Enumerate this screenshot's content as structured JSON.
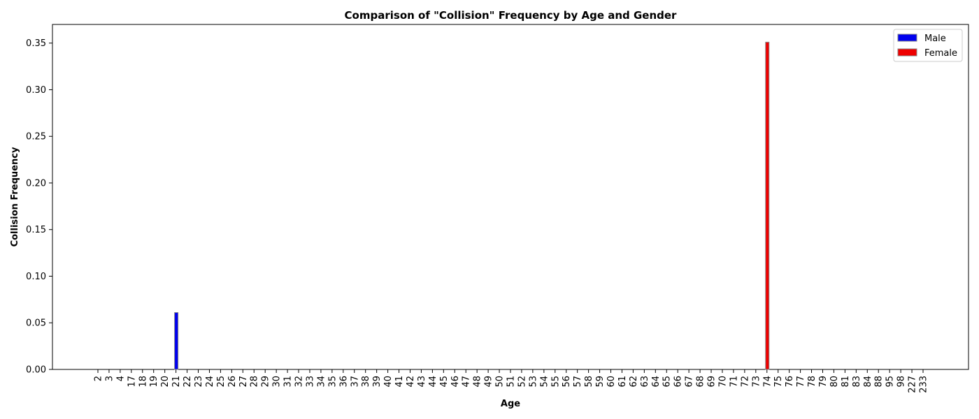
{
  "chart_data": {
    "type": "bar",
    "title": "Comparison of \"Collision\" Frequency by Age and Gender",
    "xlabel": "Age",
    "ylabel": "Collision Frequency",
    "categories": [
      "2",
      "3",
      "4",
      "17",
      "18",
      "19",
      "20",
      "21",
      "22",
      "23",
      "24",
      "25",
      "26",
      "27",
      "28",
      "29",
      "30",
      "31",
      "32",
      "33",
      "34",
      "35",
      "36",
      "37",
      "38",
      "39",
      "40",
      "41",
      "42",
      "43",
      "44",
      "45",
      "46",
      "47",
      "48",
      "49",
      "50",
      "51",
      "52",
      "53",
      "54",
      "55",
      "56",
      "57",
      "58",
      "59",
      "60",
      "61",
      "62",
      "63",
      "64",
      "65",
      "66",
      "67",
      "68",
      "69",
      "70",
      "71",
      "72",
      "73",
      "74",
      "75",
      "76",
      "77",
      "78",
      "79",
      "80",
      "81",
      "83",
      "84",
      "88",
      "95",
      "98",
      "227",
      "233"
    ],
    "series": [
      {
        "name": "Male",
        "color": "#0000ee",
        "values": {
          "21": 0.061
        }
      },
      {
        "name": "Female",
        "color": "#ee0000",
        "values": {
          "74": 0.351
        }
      }
    ],
    "ylim": [
      0,
      0.37
    ],
    "yticks": [
      "0.00",
      "0.05",
      "0.10",
      "0.15",
      "0.20",
      "0.25",
      "0.30",
      "0.35"
    ],
    "legend": "top-right",
    "grid": false
  }
}
